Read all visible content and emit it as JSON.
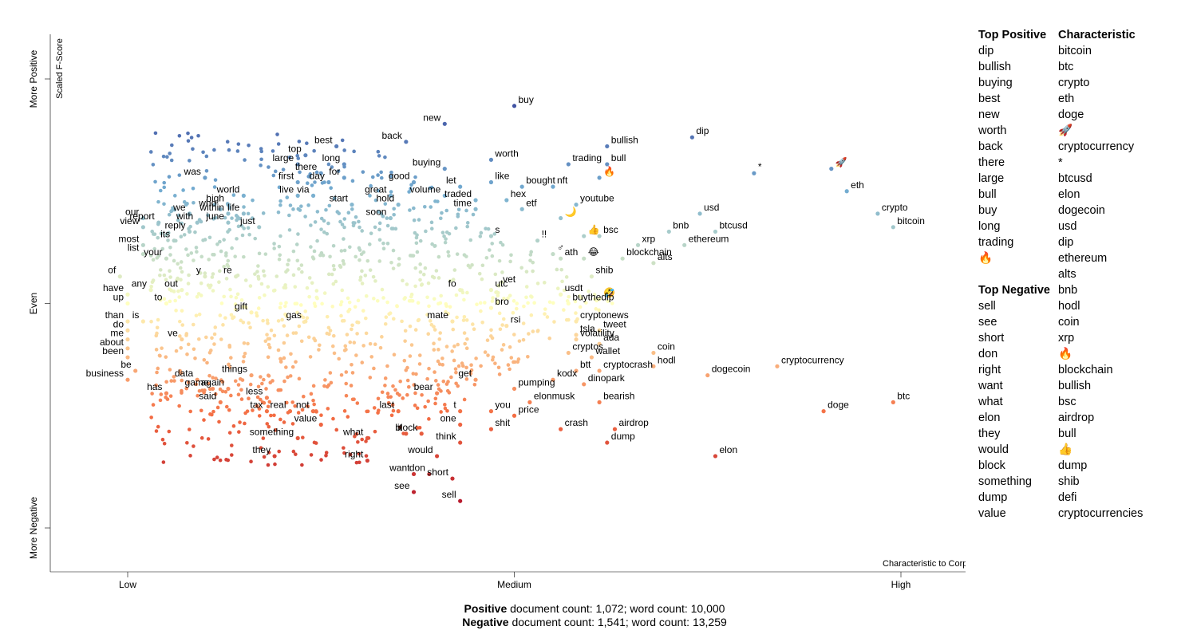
{
  "chart_data": {
    "type": "scatter",
    "x_axis": {
      "ticks": [
        "Low",
        "Medium",
        "High"
      ],
      "title": "Characteristic to Corpus"
    },
    "y_axis": {
      "ticks": [
        "More Negative",
        "Even",
        "More Positive"
      ],
      "title": "Scaled F-Score"
    },
    "ylim": [
      0,
      1
    ],
    "xlim": [
      0,
      1
    ],
    "grid": false,
    "color_scale": {
      "positive": "#313695",
      "mid_positive": "#74add1",
      "even": "#ffffbf",
      "mid_negative": "#f46d43",
      "negative": "#a50026"
    },
    "labeled_points": [
      {
        "term": "buy",
        "x": 0.5,
        "y": 0.94
      },
      {
        "term": "new",
        "x": 0.41,
        "y": 0.9
      },
      {
        "term": "back",
        "x": 0.36,
        "y": 0.86
      },
      {
        "term": "best",
        "x": 0.27,
        "y": 0.85
      },
      {
        "term": "bullish",
        "x": 0.62,
        "y": 0.85
      },
      {
        "term": "dip",
        "x": 0.73,
        "y": 0.87
      },
      {
        "term": "top",
        "x": 0.23,
        "y": 0.83
      },
      {
        "term": "worth",
        "x": 0.47,
        "y": 0.82
      },
      {
        "term": "trading",
        "x": 0.57,
        "y": 0.81
      },
      {
        "term": "bull",
        "x": 0.62,
        "y": 0.81
      },
      {
        "term": "large",
        "x": 0.22,
        "y": 0.81
      },
      {
        "term": "long",
        "x": 0.28,
        "y": 0.81
      },
      {
        "term": "buying",
        "x": 0.41,
        "y": 0.8
      },
      {
        "term": "there",
        "x": 0.25,
        "y": 0.79
      },
      {
        "term": "was",
        "x": 0.1,
        "y": 0.78
      },
      {
        "term": "for",
        "x": 0.28,
        "y": 0.78
      },
      {
        "term": "🔥",
        "x": 0.61,
        "y": 0.78
      },
      {
        "term": "*",
        "x": 0.81,
        "y": 0.79
      },
      {
        "term": "🚀",
        "x": 0.91,
        "y": 0.8
      },
      {
        "term": "good",
        "x": 0.37,
        "y": 0.77
      },
      {
        "term": "like",
        "x": 0.47,
        "y": 0.77
      },
      {
        "term": "bought",
        "x": 0.51,
        "y": 0.76
      },
      {
        "term": "first",
        "x": 0.22,
        "y": 0.77
      },
      {
        "term": "day",
        "x": 0.26,
        "y": 0.77
      },
      {
        "term": "let",
        "x": 0.43,
        "y": 0.76
      },
      {
        "term": "nft",
        "x": 0.55,
        "y": 0.76
      },
      {
        "term": "eth",
        "x": 0.93,
        "y": 0.75
      },
      {
        "term": "world",
        "x": 0.15,
        "y": 0.74
      },
      {
        "term": "live",
        "x": 0.22,
        "y": 0.74
      },
      {
        "term": "via",
        "x": 0.24,
        "y": 0.74
      },
      {
        "term": "great",
        "x": 0.34,
        "y": 0.74
      },
      {
        "term": "volume",
        "x": 0.41,
        "y": 0.74
      },
      {
        "term": "traded",
        "x": 0.45,
        "y": 0.73
      },
      {
        "term": "hex",
        "x": 0.49,
        "y": 0.73
      },
      {
        "term": "start",
        "x": 0.29,
        "y": 0.72
      },
      {
        "term": "high",
        "x": 0.13,
        "y": 0.72
      },
      {
        "term": "who",
        "x": 0.12,
        "y": 0.71
      },
      {
        "term": "hold",
        "x": 0.35,
        "y": 0.72
      },
      {
        "term": "youtube",
        "x": 0.58,
        "y": 0.72
      },
      {
        "term": "etf",
        "x": 0.51,
        "y": 0.71
      },
      {
        "term": "time",
        "x": 0.45,
        "y": 0.71
      },
      {
        "term": "life",
        "x": 0.15,
        "y": 0.7
      },
      {
        "term": "within",
        "x": 0.13,
        "y": 0.7
      },
      {
        "term": "we",
        "x": 0.08,
        "y": 0.7
      },
      {
        "term": "crypto",
        "x": 0.97,
        "y": 0.7
      },
      {
        "term": "usd",
        "x": 0.74,
        "y": 0.7
      },
      {
        "term": "🌙",
        "x": 0.56,
        "y": 0.69
      },
      {
        "term": "soon",
        "x": 0.34,
        "y": 0.69
      },
      {
        "term": "our",
        "x": 0.02,
        "y": 0.69
      },
      {
        "term": "report",
        "x": 0.04,
        "y": 0.68
      },
      {
        "term": "with",
        "x": 0.09,
        "y": 0.68
      },
      {
        "term": "june",
        "x": 0.13,
        "y": 0.68
      },
      {
        "term": "just",
        "x": 0.17,
        "y": 0.67
      },
      {
        "term": "bitcoin",
        "x": 0.99,
        "y": 0.67
      },
      {
        "term": "view",
        "x": 0.02,
        "y": 0.67
      },
      {
        "term": "reply",
        "x": 0.08,
        "y": 0.66
      },
      {
        "term": "btcusd",
        "x": 0.76,
        "y": 0.66
      },
      {
        "term": "bnb",
        "x": 0.7,
        "y": 0.66
      },
      {
        "term": "👍",
        "x": 0.59,
        "y": 0.65
      },
      {
        "term": "bsc",
        "x": 0.61,
        "y": 0.65
      },
      {
        "term": "s",
        "x": 0.47,
        "y": 0.65
      },
      {
        "term": "its",
        "x": 0.06,
        "y": 0.64
      },
      {
        "term": "!!",
        "x": 0.53,
        "y": 0.64
      },
      {
        "term": "xrp",
        "x": 0.66,
        "y": 0.63
      },
      {
        "term": "ethereum",
        "x": 0.72,
        "y": 0.63
      },
      {
        "term": "most",
        "x": 0.02,
        "y": 0.63
      },
      {
        "term": "♂",
        "x": 0.55,
        "y": 0.61
      },
      {
        "term": "list",
        "x": 0.02,
        "y": 0.61
      },
      {
        "term": "ath",
        "x": 0.56,
        "y": 0.6
      },
      {
        "term": "😂",
        "x": 0.59,
        "y": 0.6
      },
      {
        "term": "blockchain",
        "x": 0.64,
        "y": 0.6
      },
      {
        "term": "your",
        "x": 0.05,
        "y": 0.6
      },
      {
        "term": "alts",
        "x": 0.68,
        "y": 0.59
      },
      {
        "term": "shib",
        "x": 0.6,
        "y": 0.56
      },
      {
        "term": "of",
        "x": -0.01,
        "y": 0.56
      },
      {
        "term": "y",
        "x": 0.1,
        "y": 0.56
      },
      {
        "term": "re",
        "x": 0.14,
        "y": 0.56
      },
      {
        "term": "vet",
        "x": 0.48,
        "y": 0.54
      },
      {
        "term": "any",
        "x": 0.03,
        "y": 0.53
      },
      {
        "term": "out",
        "x": 0.07,
        "y": 0.53
      },
      {
        "term": "fo",
        "x": 0.43,
        "y": 0.53
      },
      {
        "term": "utc",
        "x": 0.47,
        "y": 0.53
      },
      {
        "term": "usdt",
        "x": 0.56,
        "y": 0.52
      },
      {
        "term": "have",
        "x": 0.0,
        "y": 0.52
      },
      {
        "term": "🤣",
        "x": 0.61,
        "y": 0.51
      },
      {
        "term": "up",
        "x": 0.0,
        "y": 0.5
      },
      {
        "term": "to",
        "x": 0.05,
        "y": 0.5
      },
      {
        "term": "buythedip",
        "x": 0.57,
        "y": 0.5
      },
      {
        "term": "bro",
        "x": 0.47,
        "y": 0.49
      },
      {
        "term": "gift",
        "x": 0.16,
        "y": 0.48
      },
      {
        "term": "cryptonews",
        "x": 0.58,
        "y": 0.46
      },
      {
        "term": "is",
        "x": 0.02,
        "y": 0.46
      },
      {
        "term": "than",
        "x": 0.0,
        "y": 0.46
      },
      {
        "term": "gas",
        "x": 0.23,
        "y": 0.46
      },
      {
        "term": "mate",
        "x": 0.42,
        "y": 0.46
      },
      {
        "term": "rsi",
        "x": 0.49,
        "y": 0.45
      },
      {
        "term": "do",
        "x": 0.0,
        "y": 0.44
      },
      {
        "term": "tweet",
        "x": 0.61,
        "y": 0.44
      },
      {
        "term": "tsla",
        "x": 0.58,
        "y": 0.43
      },
      {
        "term": "me",
        "x": 0.0,
        "y": 0.42
      },
      {
        "term": "ve",
        "x": 0.07,
        "y": 0.42
      },
      {
        "term": "volatility",
        "x": 0.58,
        "y": 0.42
      },
      {
        "term": "ada",
        "x": 0.61,
        "y": 0.41
      },
      {
        "term": "about",
        "x": 0.0,
        "y": 0.4
      },
      {
        "term": "cryptos",
        "x": 0.57,
        "y": 0.39
      },
      {
        "term": "coin",
        "x": 0.68,
        "y": 0.39
      },
      {
        "term": "been",
        "x": 0.0,
        "y": 0.38
      },
      {
        "term": "wallet",
        "x": 0.6,
        "y": 0.38
      },
      {
        "term": "be",
        "x": 0.01,
        "y": 0.35
      },
      {
        "term": "hodl",
        "x": 0.68,
        "y": 0.36
      },
      {
        "term": "cryptocurrency",
        "x": 0.84,
        "y": 0.36
      },
      {
        "term": "btt",
        "x": 0.58,
        "y": 0.35
      },
      {
        "term": "cryptocrash",
        "x": 0.61,
        "y": 0.35
      },
      {
        "term": "things",
        "x": 0.16,
        "y": 0.34
      },
      {
        "term": "data",
        "x": 0.09,
        "y": 0.33
      },
      {
        "term": "business",
        "x": 0.0,
        "y": 0.33
      },
      {
        "term": "get",
        "x": 0.45,
        "y": 0.33
      },
      {
        "term": "kodx",
        "x": 0.55,
        "y": 0.33
      },
      {
        "term": "dogecoin",
        "x": 0.75,
        "y": 0.34
      },
      {
        "term": "dinopark",
        "x": 0.59,
        "y": 0.32
      },
      {
        "term": "game",
        "x": 0.11,
        "y": 0.31
      },
      {
        "term": "again",
        "x": 0.13,
        "y": 0.31
      },
      {
        "term": "has",
        "x": 0.05,
        "y": 0.3
      },
      {
        "term": "bear",
        "x": 0.4,
        "y": 0.3
      },
      {
        "term": "pumping",
        "x": 0.5,
        "y": 0.31
      },
      {
        "term": "less",
        "x": 0.18,
        "y": 0.29
      },
      {
        "term": "elonmusk",
        "x": 0.52,
        "y": 0.28
      },
      {
        "term": "bearish",
        "x": 0.61,
        "y": 0.28
      },
      {
        "term": "said",
        "x": 0.12,
        "y": 0.28
      },
      {
        "term": "btc",
        "x": 0.99,
        "y": 0.28
      },
      {
        "term": "tax",
        "x": 0.18,
        "y": 0.26
      },
      {
        "term": "real",
        "x": 0.21,
        "y": 0.26
      },
      {
        "term": "not",
        "x": 0.24,
        "y": 0.26
      },
      {
        "term": "last",
        "x": 0.35,
        "y": 0.26
      },
      {
        "term": "t",
        "x": 0.43,
        "y": 0.26
      },
      {
        "term": "you",
        "x": 0.47,
        "y": 0.26
      },
      {
        "term": "doge",
        "x": 0.9,
        "y": 0.26
      },
      {
        "term": "price",
        "x": 0.5,
        "y": 0.25
      },
      {
        "term": "one",
        "x": 0.43,
        "y": 0.23
      },
      {
        "term": "value",
        "x": 0.25,
        "y": 0.23
      },
      {
        "term": "crash",
        "x": 0.56,
        "y": 0.22
      },
      {
        "term": "airdrop",
        "x": 0.63,
        "y": 0.22
      },
      {
        "term": "shit",
        "x": 0.47,
        "y": 0.22
      },
      {
        "term": "block",
        "x": 0.38,
        "y": 0.21
      },
      {
        "term": "it",
        "x": 0.36,
        "y": 0.21
      },
      {
        "term": "what",
        "x": 0.31,
        "y": 0.2
      },
      {
        "term": "something",
        "x": 0.22,
        "y": 0.2
      },
      {
        "term": "think",
        "x": 0.43,
        "y": 0.19
      },
      {
        "term": "dump",
        "x": 0.62,
        "y": 0.19
      },
      {
        "term": "elon",
        "x": 0.76,
        "y": 0.16
      },
      {
        "term": "they",
        "x": 0.19,
        "y": 0.16
      },
      {
        "term": "would",
        "x": 0.4,
        "y": 0.16
      },
      {
        "term": "right",
        "x": 0.31,
        "y": 0.15
      },
      {
        "term": "want",
        "x": 0.37,
        "y": 0.12
      },
      {
        "term": "don",
        "x": 0.39,
        "y": 0.12
      },
      {
        "term": "short",
        "x": 0.42,
        "y": 0.11
      },
      {
        "term": "see",
        "x": 0.37,
        "y": 0.08
      },
      {
        "term": "sell",
        "x": 0.43,
        "y": 0.06
      }
    ],
    "top_positive": [
      "dip",
      "bullish",
      "buying",
      "best",
      "new",
      "worth",
      "back",
      "there",
      "large",
      "bull",
      "buy",
      "long",
      "trading",
      "🔥"
    ],
    "top_negative": [
      "sell",
      "see",
      "short",
      "don",
      "right",
      "want",
      "what",
      "elon",
      "they",
      "would",
      "block",
      "something",
      "dump",
      "value"
    ],
    "characteristic": [
      "bitcoin",
      "btc",
      "crypto",
      "eth",
      "doge",
      "🚀",
      "cryptocurrency",
      "*",
      "btcusd",
      "elon",
      "dogecoin",
      "usd",
      "dip",
      "ethereum",
      "alts",
      "bnb",
      "hodl",
      "coin",
      "xrp",
      "🔥",
      "blockchain",
      "bullish",
      "bsc",
      "airdrop",
      "bull",
      "👍",
      "dump",
      "shib",
      "defi",
      "cryptocurrencies"
    ]
  },
  "panel": {
    "top_positive_heading": "Top Positive",
    "top_negative_heading": "Top Negative",
    "characteristic_heading": "Characteristic"
  },
  "footer": {
    "positive_label": "Positive",
    "positive_text": " document count: 1,072; word count: 10,000",
    "negative_label": "Negative",
    "negative_text": " document count: 1,541; word count: 13,259"
  }
}
